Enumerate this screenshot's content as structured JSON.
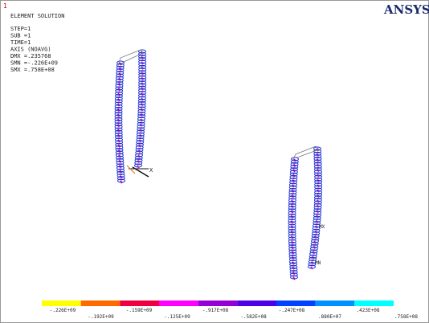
{
  "window_number": "1",
  "info": {
    "title": "ELEMENT SOLUTION",
    "lines": [
      "STEP=1",
      "SUB =1",
      "TIME=1",
      "AXIS     (NOAVG)",
      "DMX =.235768",
      "SMN =-.226E+09",
      "SMX =.758E+08"
    ]
  },
  "logo": "ANSYS",
  "markers": {
    "axis": "X",
    "max": "MX",
    "min": "MN"
  },
  "legend": {
    "colors": [
      "#ffff00",
      "#ff6a00",
      "#ee0040",
      "#ff00ff",
      "#9400d3",
      "#4b00e6",
      "#0040ff",
      "#0090ff",
      "#00ffff"
    ],
    "labels": [
      "-.226E+09",
      "-.192E+09",
      "-.159E+09",
      "-.125E+09",
      "-.917E+08",
      "-.582E+08",
      "-.247E+08",
      ".880E+07",
      ".423E+08",
      ".758E+08"
    ]
  }
}
